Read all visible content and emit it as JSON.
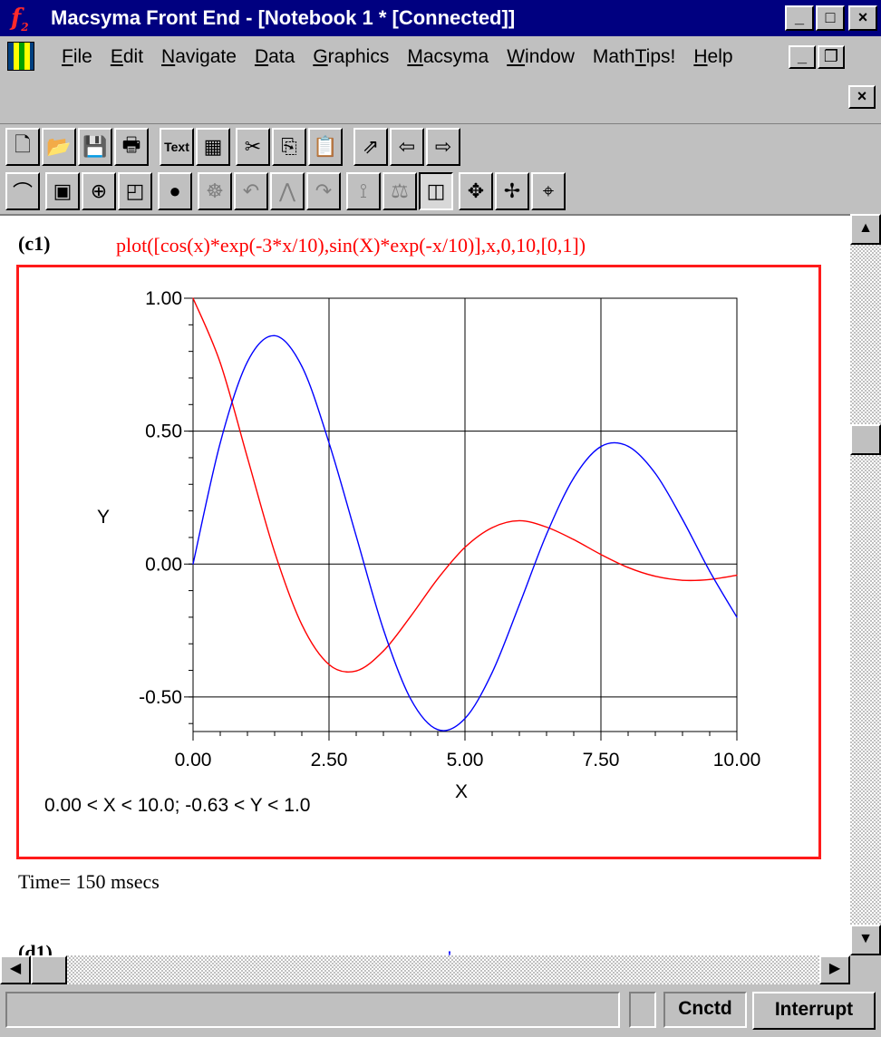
{
  "window": {
    "title": "Macsyma Front End - [Notebook 1 * [Connected]]",
    "app_icon": "f",
    "app_icon_sub": "2",
    "min_glyph": "_",
    "max_glyph": "□",
    "close_glyph": "×",
    "mdi_min_glyph": "_",
    "mdi_restore_glyph": "❐",
    "mdi_close_glyph": "×"
  },
  "menubar": {
    "items": [
      {
        "ul": "F",
        "rest": "ile"
      },
      {
        "ul": "E",
        "rest": "dit"
      },
      {
        "ul": "N",
        "rest": "avigate"
      },
      {
        "ul": "D",
        "rest": "ata"
      },
      {
        "ul": "G",
        "rest": "raphics"
      },
      {
        "ul": "M",
        "rest": "acsyma"
      },
      {
        "ul": "W",
        "rest": "indow"
      },
      {
        "pre": "Math",
        "ul": "T",
        "rest": "ips!"
      },
      {
        "ul": "H",
        "rest": "elp"
      }
    ]
  },
  "toolbar1": {
    "buttons": [
      {
        "name": "new-document-icon",
        "glyph": "🗋"
      },
      {
        "name": "open-folder-icon",
        "glyph": "📂"
      },
      {
        "name": "save-disk-icon",
        "glyph": "💾"
      },
      {
        "name": "print-icon",
        "glyph": "🖶"
      },
      {
        "name": "text-button",
        "glyph": "Text"
      },
      {
        "name": "table-icon",
        "glyph": "▦"
      },
      {
        "name": "cut-scissors-icon",
        "glyph": "✂"
      },
      {
        "name": "copy-icon",
        "glyph": "⎘"
      },
      {
        "name": "paste-icon",
        "glyph": "📋"
      },
      {
        "name": "jump-arrow-icon",
        "glyph": "⇗"
      },
      {
        "name": "back-arrow-icon",
        "glyph": "⇦"
      },
      {
        "name": "forward-arrow-icon",
        "glyph": "⇨"
      }
    ]
  },
  "toolbar2": {
    "buttons": [
      {
        "name": "graph-icon",
        "glyph": "⌒"
      },
      {
        "name": "chip-icon",
        "glyph": "▣"
      },
      {
        "name": "globe-icon",
        "glyph": "⊕"
      },
      {
        "name": "screen-icon",
        "glyph": "◰"
      },
      {
        "name": "bcd-icon",
        "glyph": "●"
      },
      {
        "name": "camera-icon",
        "glyph": "☸"
      },
      {
        "name": "rotate-icon",
        "glyph": "↶"
      },
      {
        "name": "figure-icon",
        "glyph": "⋀"
      },
      {
        "name": "step-icon",
        "glyph": "↷"
      },
      {
        "name": "road-icon",
        "glyph": "⟟"
      },
      {
        "name": "balance-icon",
        "glyph": "⚖"
      },
      {
        "name": "box-3d-icon",
        "glyph": "◫"
      },
      {
        "name": "move-cross-icon",
        "glyph": "✥"
      },
      {
        "name": "pan-cross-icon",
        "glyph": "✢"
      },
      {
        "name": "crosshair-icon",
        "glyph": "⌖"
      }
    ]
  },
  "cell": {
    "label": "(c1)",
    "input": "plot([cos(x)*exp(-3*x/10),sin(X)*exp(-x/10)],x,0,10,[0,1])",
    "time": "Time= 150 msecs",
    "next_label": "(d1)",
    "next_mark": "'"
  },
  "scrollbar": {
    "up": "▲",
    "down": "▼",
    "left": "◀",
    "right": "▶"
  },
  "status": {
    "message": "",
    "cnctd": "Cnctd",
    "interrupt": "Interrupt"
  },
  "colors": {
    "titlebar": "#000080",
    "cos_series": "#ff0000",
    "sin_series": "#0000ff",
    "frame": "#ff1a1a"
  },
  "chart_data": {
    "type": "line",
    "xlabel": "X",
    "ylabel": "Y",
    "xlim": [
      0,
      10
    ],
    "ylim": [
      -0.63,
      1.0
    ],
    "x_ticks": [
      "0.00",
      "2.50",
      "5.00",
      "7.50",
      "10.00"
    ],
    "y_ticks": [
      "1.00",
      "0.50",
      "0.00",
      "-0.50"
    ],
    "range_note": "0.00 < X < 10.0; -0.63 < Y < 1.0",
    "grid": true,
    "series": [
      {
        "color": "#ff0000",
        "x": [
          0,
          0.5,
          1,
          1.5,
          2,
          2.5,
          3,
          3.5,
          4,
          4.5,
          5,
          5.5,
          6,
          6.5,
          7,
          7.5,
          8,
          8.5,
          9,
          9.5,
          10
        ],
        "y": [
          1.0,
          0.757,
          0.4,
          0.045,
          -0.228,
          -0.378,
          -0.402,
          -0.327,
          -0.197,
          -0.055,
          0.063,
          0.137,
          0.163,
          0.139,
          0.092,
          0.036,
          -0.013,
          -0.046,
          -0.061,
          -0.058,
          -0.042
        ]
      },
      {
        "color": "#0000ff",
        "x": [
          0,
          0.5,
          1,
          1.5,
          2,
          2.5,
          3,
          3.5,
          4,
          4.5,
          5,
          5.5,
          6,
          6.5,
          7,
          7.5,
          8,
          8.5,
          9,
          9.5,
          10
        ],
        "y": [
          0.0,
          0.456,
          0.761,
          0.859,
          0.744,
          0.456,
          0.105,
          -0.246,
          -0.507,
          -0.623,
          -0.581,
          -0.408,
          -0.153,
          0.112,
          0.324,
          0.442,
          0.443,
          0.341,
          0.168,
          -0.027,
          -0.2
        ]
      }
    ]
  }
}
